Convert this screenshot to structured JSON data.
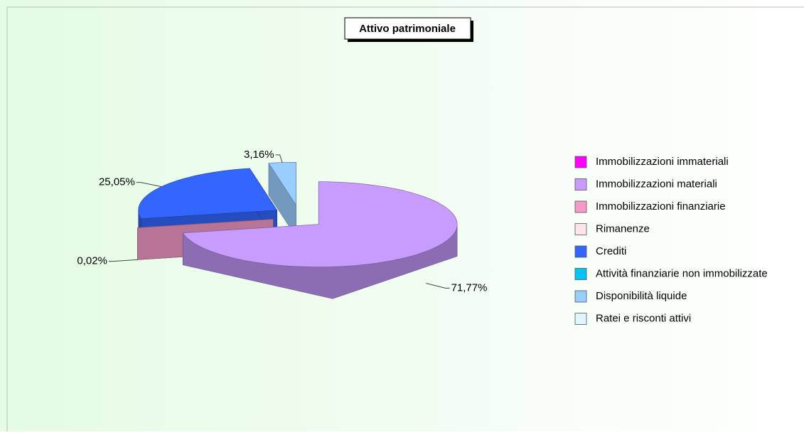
{
  "chart_data": {
    "type": "pie",
    "title": "Attivo patrimoniale",
    "categories": [
      "Immobilizzazioni immateriali",
      "Immobilizzazioni materiali",
      "Immobilizzazioni finanziarie",
      "Rimanenze",
      "Crediti",
      "Attività finanziarie non immobilizzate",
      "Disponibilità liquide",
      "Ratei e risconti attivi"
    ],
    "values": [
      0,
      71.77,
      0.02,
      0,
      25.05,
      0,
      3.16,
      0
    ],
    "value_labels": [
      null,
      "71,77%",
      "0,02%",
      null,
      "25,05%",
      null,
      "3,16%",
      null
    ],
    "colors": [
      "#ff00ff",
      "#c89bff",
      "#f49ac8",
      "#ffe4ea",
      "#3366ff",
      "#00c4f2",
      "#99ccff",
      "#ddf6ff"
    ],
    "legend": "right"
  }
}
